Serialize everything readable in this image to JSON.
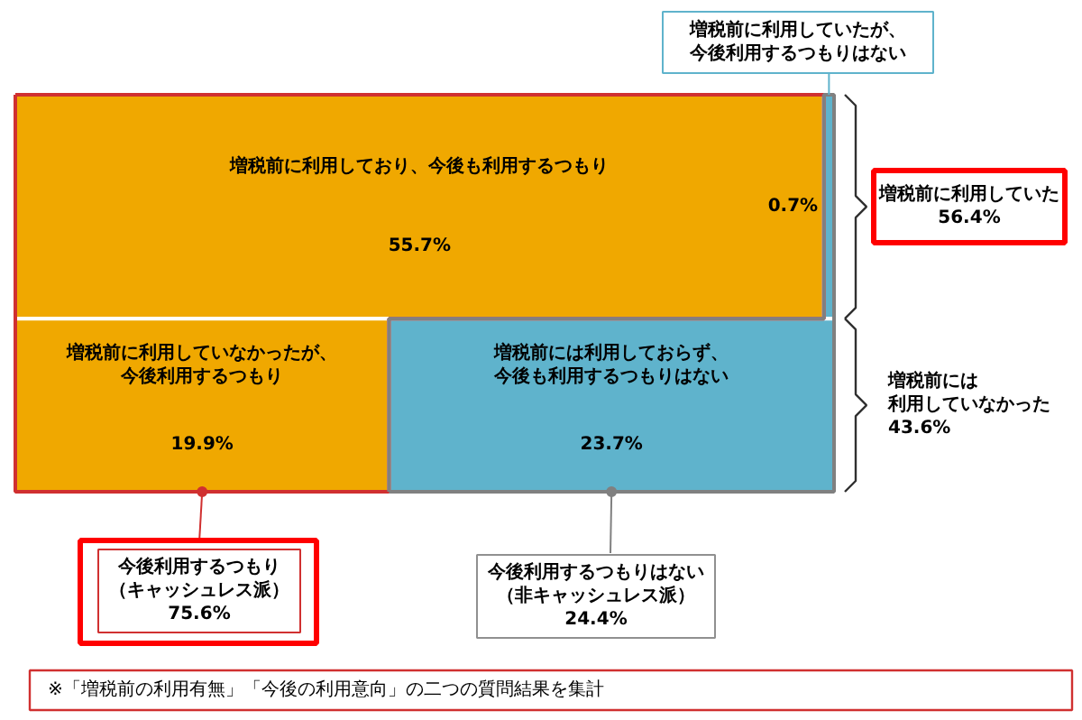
{
  "chart_data": {
    "type": "other",
    "categories": [
      "増税前に利用しており、今後も利用するつもり",
      "増税前に利用していたが、今後利用するつもりはない",
      "増税前に利用していなかったが、今後利用するつもり",
      "増税前には利用しておらず、今後も利用するつもりはない"
    ],
    "values": [
      55.7,
      0.7,
      19.9,
      23.7
    ],
    "value_labels": [
      "55.7%",
      "0.7%",
      "19.9%",
      "23.7%"
    ],
    "colors": [
      "#f0a800",
      "#5fb3cc",
      "#f0a800",
      "#5fb3cc"
    ],
    "annotations": [
      "増税前に利用していた56.4%",
      "増税前には利用していなかった43.6%",
      "今後利用するつもり（キャッシュレス派）75.6%",
      "今後利用するつもりはない（非キャッシュレス派）24.4%",
      "※「増税前の利用有無」「今後の利用意向」の二つの質問結果を集計"
    ]
  }
}
